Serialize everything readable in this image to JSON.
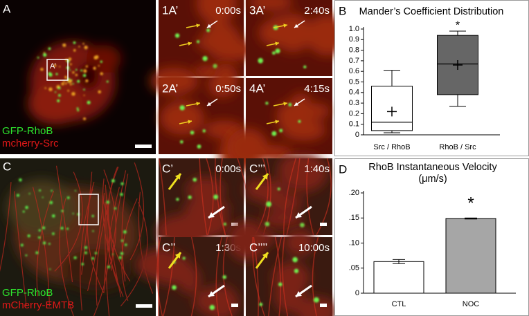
{
  "figure": {
    "panel_A": {
      "label": "A",
      "roi": "A’",
      "legend": [
        "GFP-RhoB",
        "mcherry-Src"
      ]
    },
    "insets_A": [
      {
        "label": "1A’",
        "time": "0:00s"
      },
      {
        "label": "3A’",
        "time": "2:40s"
      },
      {
        "label": "2A’",
        "time": "0:50s"
      },
      {
        "label": "4A’",
        "time": "4:15s"
      }
    ],
    "panel_C": {
      "label": "C",
      "legend": [
        "GFP-RhoB",
        "mCherry-EMTB"
      ]
    },
    "insets_C": [
      {
        "label": "C’",
        "time": "0:00s"
      },
      {
        "label": "C’’’",
        "time": "1:40s"
      },
      {
        "label": "C’’",
        "time": "1:30s"
      },
      {
        "label": "C’’’’",
        "time": "10:00s"
      }
    ]
  },
  "chart_data": [
    {
      "type": "box",
      "panel": "B",
      "title": "Mander’s Coefficient Distribution",
      "categories": [
        "Src / RhoB",
        "RhoB / Src"
      ],
      "min": [
        0.02,
        0.27
      ],
      "q1": [
        0.04,
        0.38
      ],
      "median": [
        0.12,
        0.67
      ],
      "q3": [
        0.46,
        0.94
      ],
      "max": [
        0.61,
        0.98
      ],
      "mean": [
        0.22,
        0.66
      ],
      "colors": [
        "#ffffff",
        "#666666"
      ],
      "annotation": "*",
      "annotation_category": 1,
      "ylim": [
        0,
        1
      ],
      "yticks": [
        0,
        0.1,
        0.2,
        0.3,
        0.4,
        0.5,
        0.6,
        0.7,
        0.8,
        0.9,
        {
          "value": 1,
          "label": "1.0"
        }
      ]
    },
    {
      "type": "bar",
      "panel": "D",
      "title": "RhoB Instantaneous Velocity (μm/s)",
      "categories": [
        "CTL",
        "NOC"
      ],
      "values": [
        0.063,
        0.149
      ],
      "errors": [
        0.004,
        0.001
      ],
      "colors": [
        "#ffffff",
        "#a6a6a6"
      ],
      "annotation": "*",
      "annotation_category": 1,
      "ylim": [
        0,
        0.2
      ],
      "yticks": [
        0,
        {
          "value": 0.05,
          "label": ".05"
        },
        {
          "value": 0.1,
          "label": ".10"
        },
        {
          "value": 0.15,
          "label": ".15"
        },
        {
          "value": 0.2,
          "label": ".20"
        }
      ]
    }
  ]
}
